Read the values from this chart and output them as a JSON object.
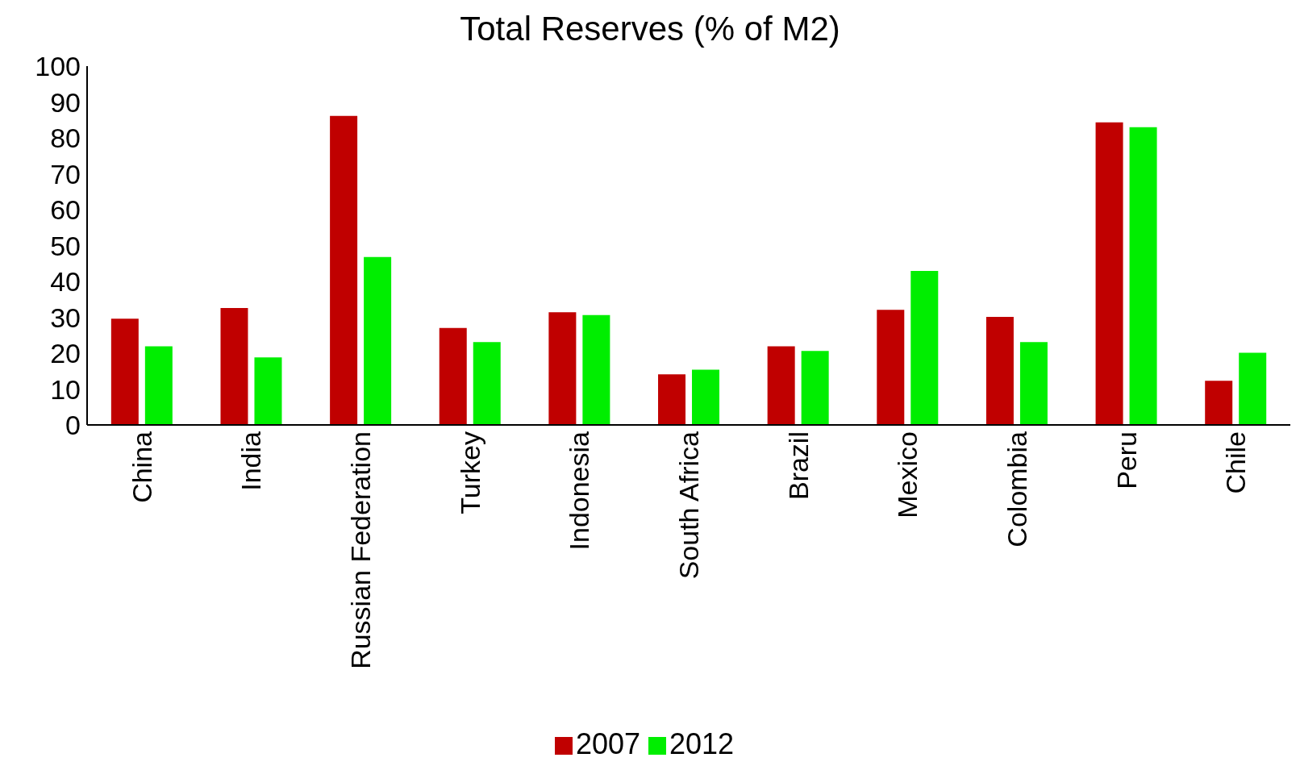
{
  "chart_data": {
    "type": "bar",
    "title": "Total Reserves (% of M2)",
    "categories": [
      "China",
      "India",
      "Russian Federation",
      "Turkey",
      "Indonesia",
      "South Africa",
      "Brazil",
      "Mexico",
      "Colombia",
      "Peru",
      "Chile"
    ],
    "series": [
      {
        "name": "2007",
        "color": "#c00000",
        "values": [
          29.6,
          32.6,
          86.1,
          27,
          31.4,
          14.1,
          21.9,
          32.1,
          30.1,
          84.3,
          12.3
        ]
      },
      {
        "name": "2012",
        "color": "#00ee00",
        "values": [
          21.9,
          18.8,
          46.8,
          23.1,
          30.6,
          15.4,
          20.6,
          42.9,
          23.1,
          83,
          20.1
        ]
      }
    ],
    "ylim": [
      0,
      100
    ],
    "yticks": [
      0,
      10,
      20,
      30,
      40,
      50,
      60,
      70,
      80,
      90,
      100
    ],
    "grid": false,
    "legend": "bottom"
  }
}
